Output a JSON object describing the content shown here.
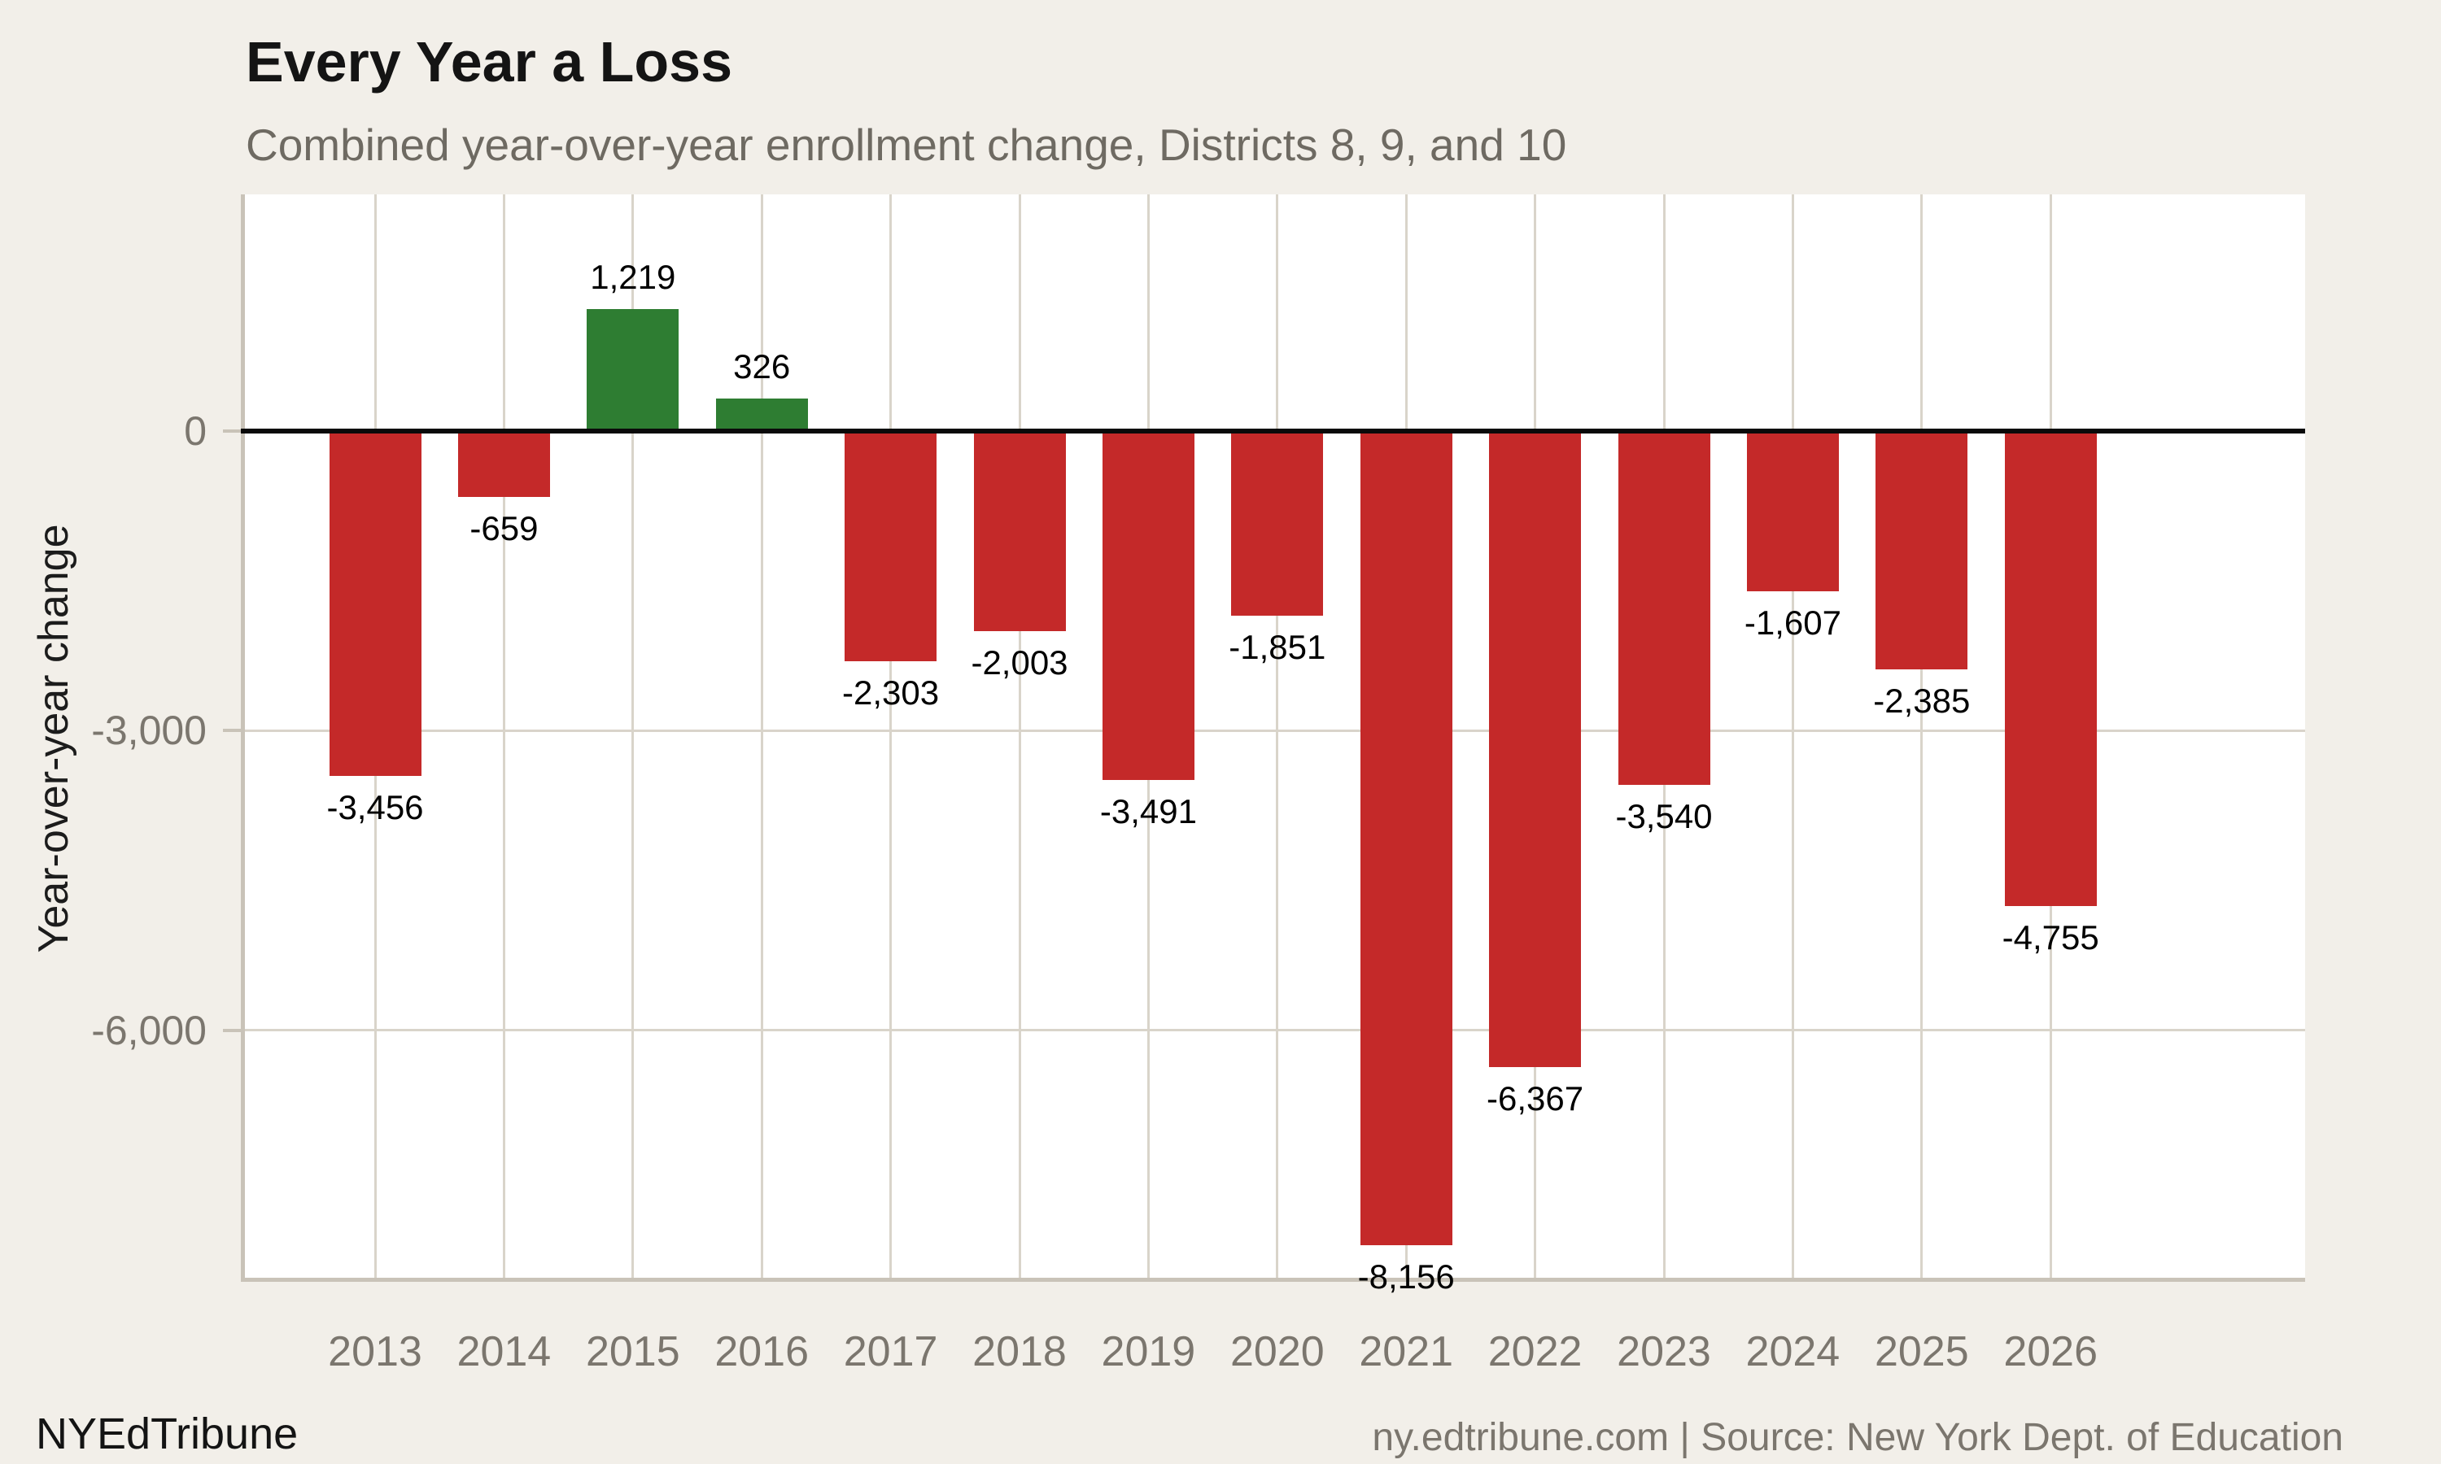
{
  "header": {
    "title": "Every Year a Loss",
    "subtitle": "Combined year-over-year enrollment change, Districts 8, 9, and 10"
  },
  "footer": {
    "brand": "NYEdTribune",
    "source": "ny.edtribune.com | Source: New York Dept. of Education"
  },
  "colors": {
    "page_background": "#f2efe9",
    "plot_background": "#ffffff",
    "positive_bar": "#2e7d32",
    "negative_bar": "#c42929",
    "zero_line": "#0a0a0a",
    "gridline": "#d9d4ca",
    "axis_line": "#c9c3b8",
    "tick_text": "#7b766e",
    "subtitle_text": "#6e6a62"
  },
  "chart_data": {
    "type": "bar",
    "title": "Every Year a Loss",
    "subtitle": "Combined year-over-year enrollment change, Districts 8, 9, and 10",
    "categories": [
      "2013",
      "2014",
      "2015",
      "2016",
      "2017",
      "2018",
      "2019",
      "2020",
      "2021",
      "2022",
      "2023",
      "2024",
      "2025",
      "2026"
    ],
    "values": [
      -3456,
      -659,
      1219,
      326,
      -2303,
      -2003,
      -3491,
      -1851,
      -8156,
      -6367,
      -3540,
      -1607,
      -2385,
      -4755
    ],
    "value_labels": [
      "-3,456",
      "-659",
      "1,219",
      "326",
      "-2,303",
      "-2,003",
      "-3,491",
      "-1,851",
      "-8,156",
      "-6,367",
      "-3,540",
      "-1,607",
      "-2,385",
      "-4,755"
    ],
    "xlabel": "",
    "ylabel": "Year-over-year change",
    "ylim": [
      -8520,
      2370
    ],
    "yticks": [
      {
        "value": 0,
        "label": "0"
      },
      {
        "value": -3000,
        "label": "-3,000"
      },
      {
        "value": -6000,
        "label": "-6,000"
      }
    ],
    "baseline": 0,
    "grid": true,
    "legend_position": "none",
    "bar_color_rule": "green if positive, red if negative"
  }
}
